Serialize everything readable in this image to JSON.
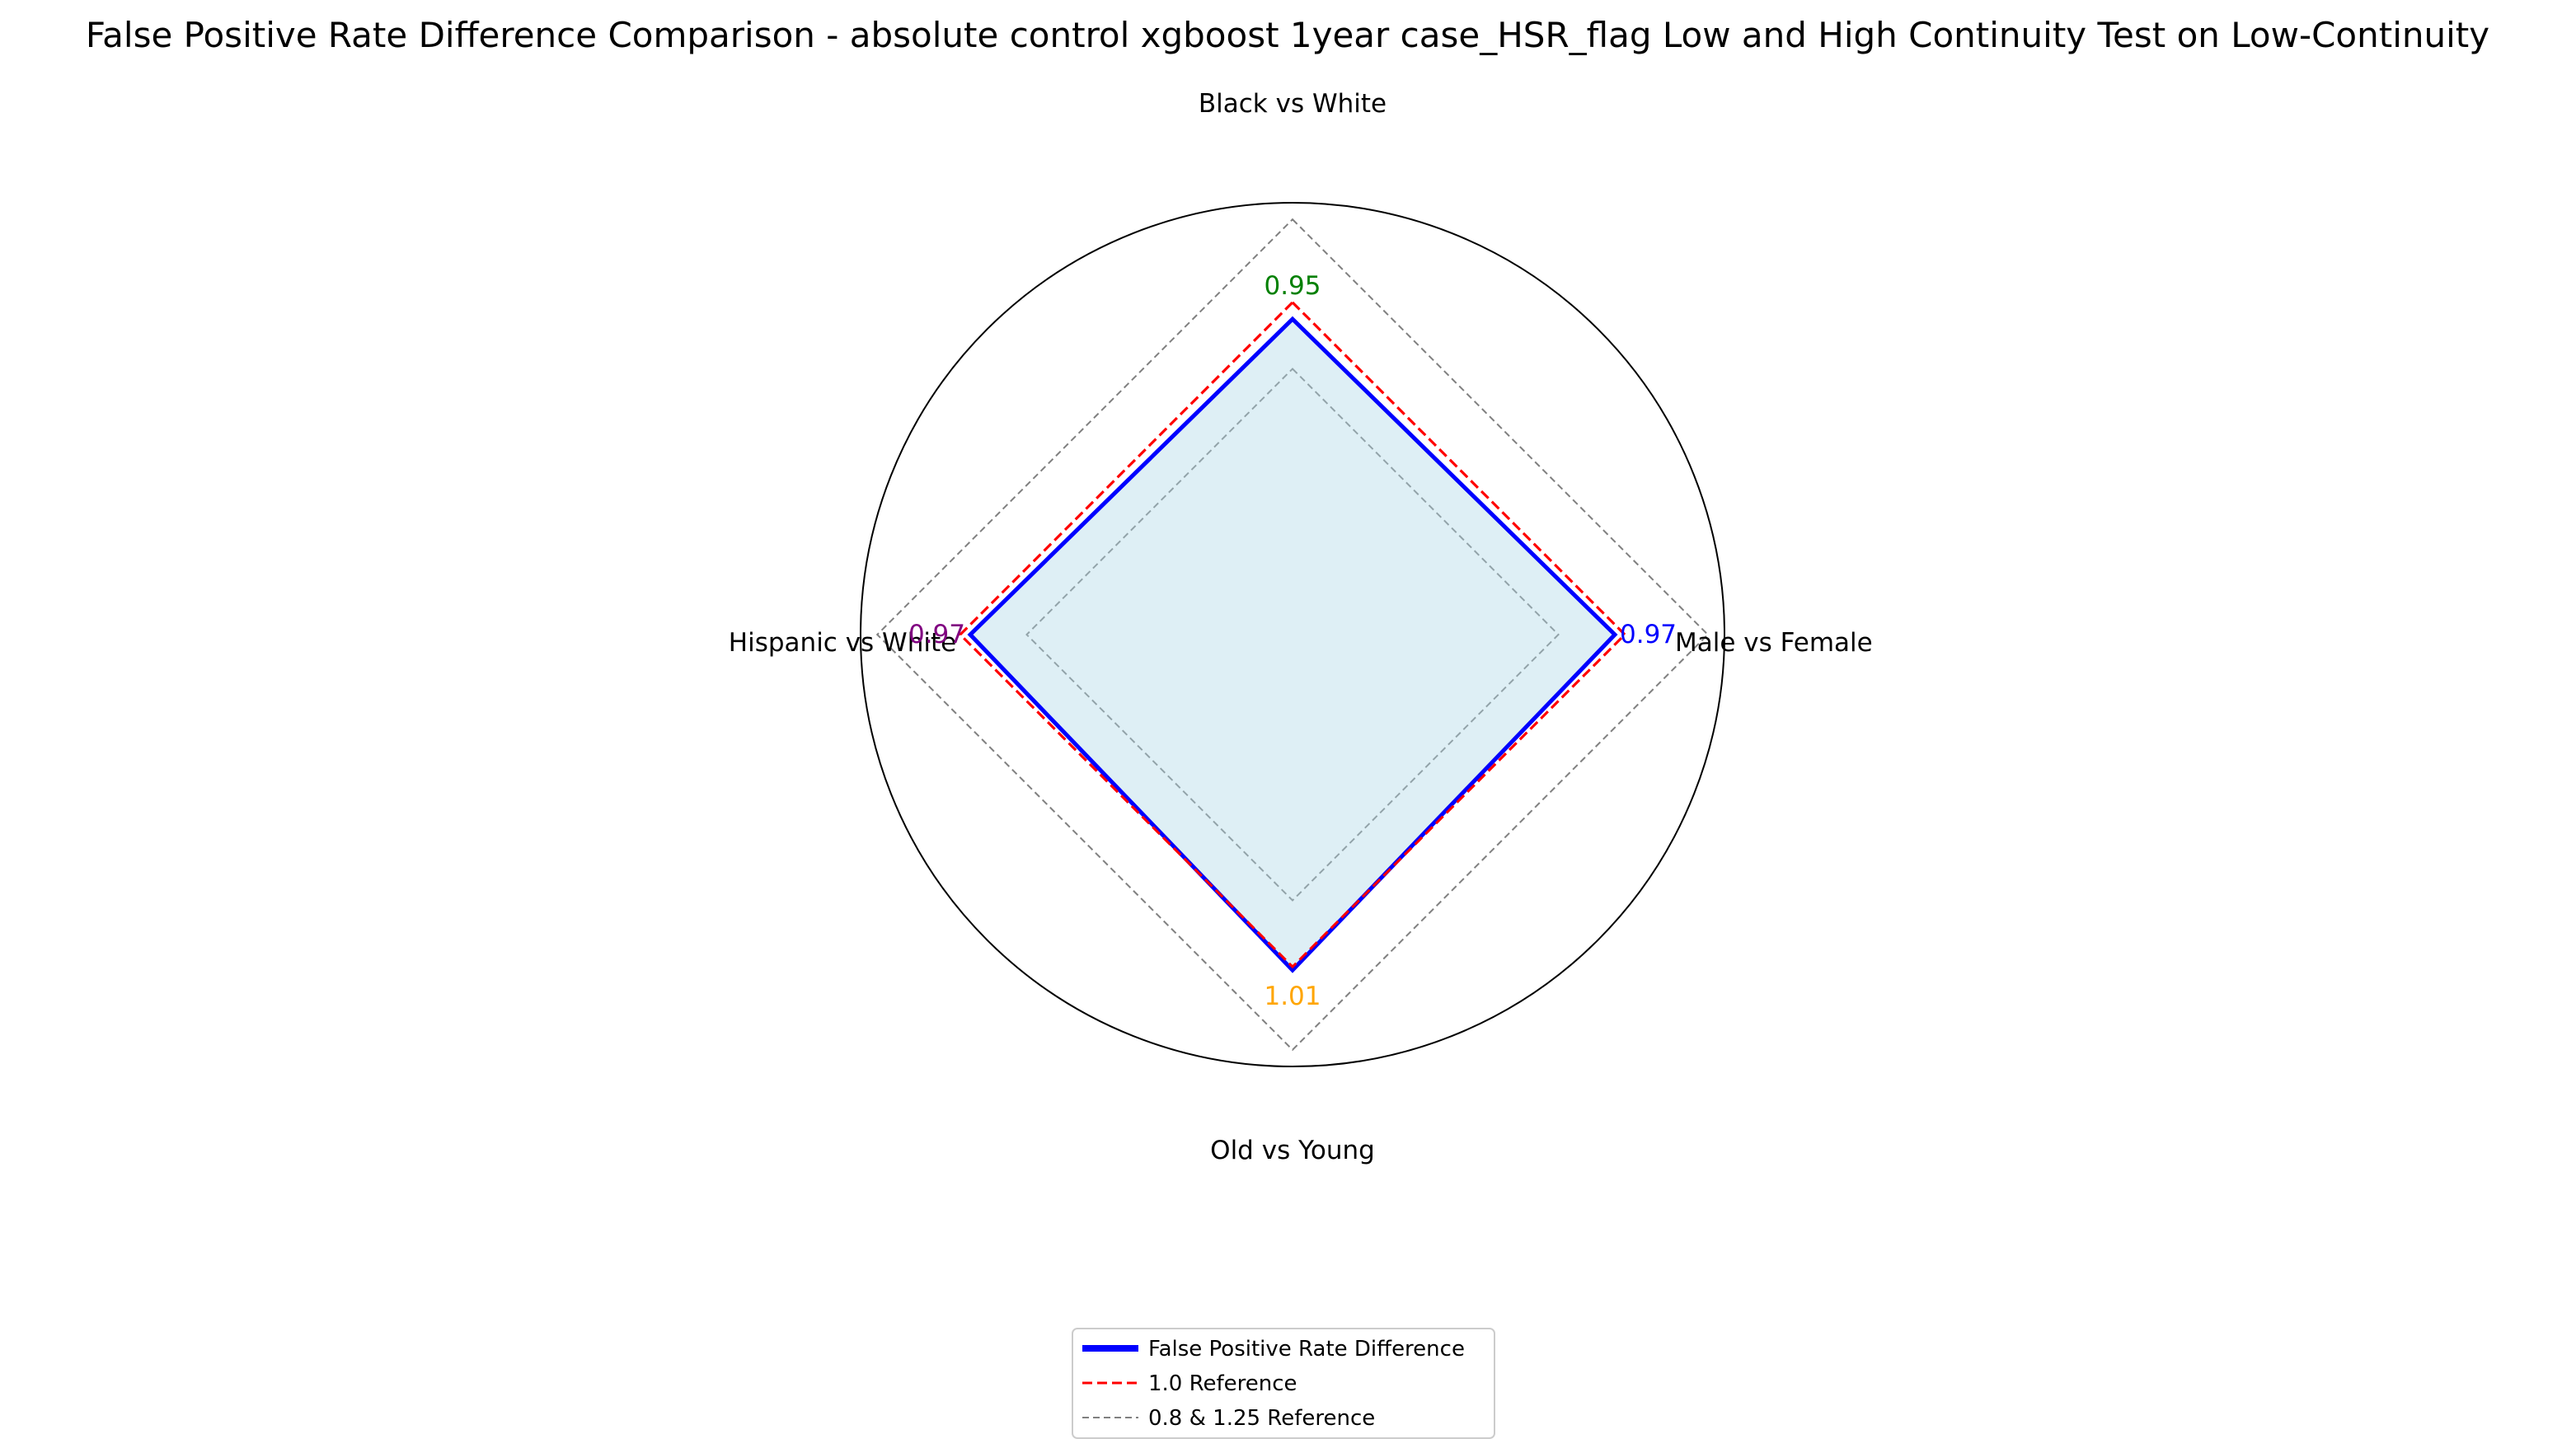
{
  "chart_data": {
    "type": "radar",
    "title": "False Positive Rate Difference Comparison - absolute control xgboost 1year case_HSR_flag Low and High Continuity Test on Low-Continuity",
    "categories": [
      "Black vs White",
      "Male vs Female",
      "Old vs Young",
      "Hispanic vs White"
    ],
    "series": [
      {
        "name": "False Positive Rate Difference",
        "values": [
          0.95,
          0.97,
          1.01,
          0.97
        ],
        "labels": [
          "0.95",
          "0.97",
          "1.01",
          "0.97"
        ],
        "color": "#0000ff",
        "fill": "#add8e6",
        "style": "solid"
      }
    ],
    "value_label_colors": [
      "#008000",
      "#0000ff",
      "#ffa500",
      "#800080"
    ],
    "reference_lines": [
      {
        "name": "1.0 Reference",
        "values": [
          1.0
        ],
        "color": "#ff0000",
        "style": "dashed"
      },
      {
        "name": "0.8 & 1.25 Reference",
        "values": [
          0.8,
          1.25
        ],
        "color": "#808080",
        "style": "dashed"
      }
    ],
    "r_max": 1.3,
    "grid": false,
    "legend_position": "bottom-center"
  }
}
